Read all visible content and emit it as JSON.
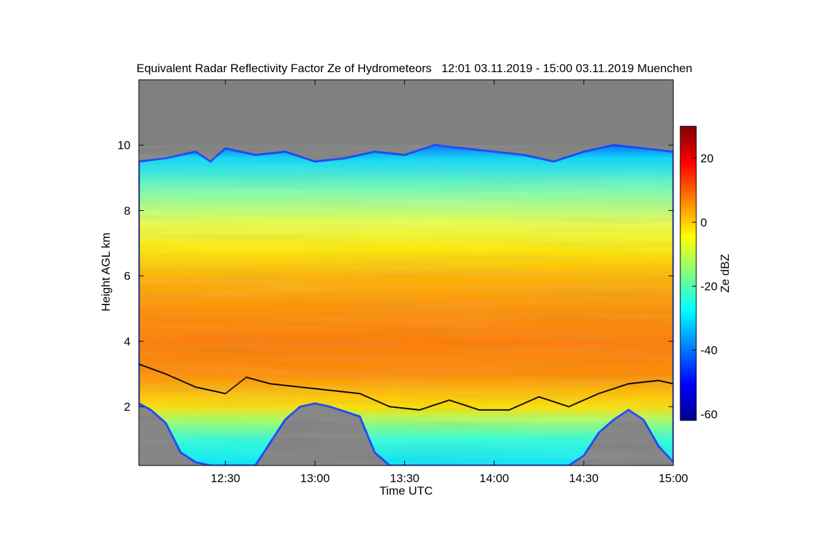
{
  "chart_data": {
    "type": "heatmap",
    "title": "Equivalent Radar Reflectivity Factor Ze of Hydrometeors   12:01 03.11.2019 - 15:00 03.11.2019 Muenchen",
    "xlabel": "Time UTC",
    "ylabel": "Height AGL km",
    "colorbar_label": "Ze dBZ",
    "x_range_minutes_utc": [
      721,
      900
    ],
    "x_ticks": [
      {
        "minute": 750,
        "label": "12:30"
      },
      {
        "minute": 780,
        "label": "13:00"
      },
      {
        "minute": 810,
        "label": "13:30"
      },
      {
        "minute": 840,
        "label": "14:00"
      },
      {
        "minute": 870,
        "label": "14:30"
      },
      {
        "minute": 900,
        "label": "15:00"
      }
    ],
    "ylim_km": [
      0.2,
      12.0
    ],
    "y_ticks": [
      2,
      4,
      6,
      8,
      10
    ],
    "colorbar_range_dbz": [
      -62,
      30
    ],
    "colorbar_ticks": [
      -60,
      -40,
      -20,
      0,
      20
    ],
    "no_data_color": "#808080",
    "colormap": [
      "#00008f",
      "#0000ff",
      "#0080ff",
      "#00ffff",
      "#80ff80",
      "#ffff00",
      "#ff8000",
      "#ff0000",
      "#800000"
    ],
    "cloud_top_km": [
      {
        "minute": 721,
        "km": 9.5
      },
      {
        "minute": 730,
        "km": 9.6
      },
      {
        "minute": 740,
        "km": 9.8
      },
      {
        "minute": 745,
        "km": 9.5
      },
      {
        "minute": 750,
        "km": 9.9
      },
      {
        "minute": 760,
        "km": 9.7
      },
      {
        "minute": 770,
        "km": 9.8
      },
      {
        "minute": 780,
        "km": 9.5
      },
      {
        "minute": 790,
        "km": 9.6
      },
      {
        "minute": 800,
        "km": 9.8
      },
      {
        "minute": 810,
        "km": 9.7
      },
      {
        "minute": 820,
        "km": 10.0
      },
      {
        "minute": 830,
        "km": 9.9
      },
      {
        "minute": 840,
        "km": 9.8
      },
      {
        "minute": 850,
        "km": 9.7
      },
      {
        "minute": 860,
        "km": 9.5
      },
      {
        "minute": 870,
        "km": 9.8
      },
      {
        "minute": 880,
        "km": 10.0
      },
      {
        "minute": 890,
        "km": 9.9
      },
      {
        "minute": 900,
        "km": 9.8
      }
    ],
    "cloud_base_km": [
      {
        "minute": 721,
        "km": 2.1
      },
      {
        "minute": 725,
        "km": 1.9
      },
      {
        "minute": 730,
        "km": 1.5
      },
      {
        "minute": 735,
        "km": 0.6
      },
      {
        "minute": 740,
        "km": 0.3
      },
      {
        "minute": 745,
        "km": 0.2
      },
      {
        "minute": 760,
        "km": 0.2
      },
      {
        "minute": 765,
        "km": 0.9
      },
      {
        "minute": 770,
        "km": 1.6
      },
      {
        "minute": 775,
        "km": 2.0
      },
      {
        "minute": 780,
        "km": 2.1
      },
      {
        "minute": 785,
        "km": 2.0
      },
      {
        "minute": 795,
        "km": 1.7
      },
      {
        "minute": 800,
        "km": 0.6
      },
      {
        "minute": 805,
        "km": 0.2
      },
      {
        "minute": 865,
        "km": 0.2
      },
      {
        "minute": 870,
        "km": 0.5
      },
      {
        "minute": 875,
        "km": 1.2
      },
      {
        "minute": 880,
        "km": 1.6
      },
      {
        "minute": 885,
        "km": 1.9
      },
      {
        "minute": 890,
        "km": 1.6
      },
      {
        "minute": 895,
        "km": 0.8
      },
      {
        "minute": 900,
        "km": 0.3
      }
    ],
    "melting_layer_km": [
      {
        "minute": 721,
        "km": 3.3
      },
      {
        "minute": 730,
        "km": 3.0
      },
      {
        "minute": 740,
        "km": 2.6
      },
      {
        "minute": 750,
        "km": 2.4
      },
      {
        "minute": 757,
        "km": 2.9
      },
      {
        "minute": 765,
        "km": 2.7
      },
      {
        "minute": 775,
        "km": 2.6
      },
      {
        "minute": 785,
        "km": 2.5
      },
      {
        "minute": 795,
        "km": 2.4
      },
      {
        "minute": 805,
        "km": 2.0
      },
      {
        "minute": 815,
        "km": 1.9
      },
      {
        "minute": 825,
        "km": 2.2
      },
      {
        "minute": 835,
        "km": 1.9
      },
      {
        "minute": 845,
        "km": 1.9
      },
      {
        "minute": 855,
        "km": 2.3
      },
      {
        "minute": 865,
        "km": 2.0
      },
      {
        "minute": 875,
        "km": 2.4
      },
      {
        "minute": 885,
        "km": 2.7
      },
      {
        "minute": 895,
        "km": 2.8
      },
      {
        "minute": 900,
        "km": 2.7
      }
    ]
  }
}
